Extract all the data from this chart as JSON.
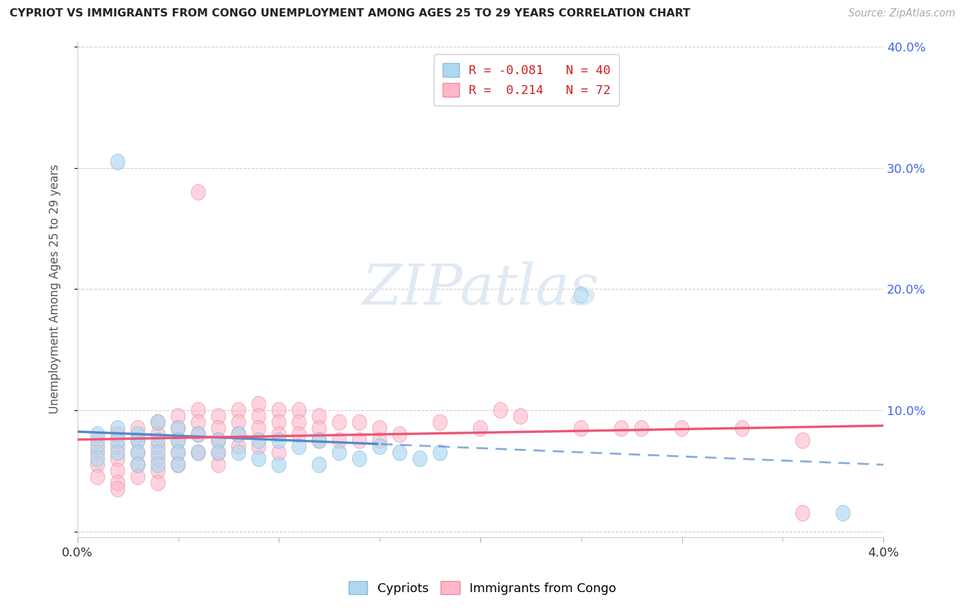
{
  "title": "CYPRIOT VS IMMIGRANTS FROM CONGO UNEMPLOYMENT AMONG AGES 25 TO 29 YEARS CORRELATION CHART",
  "source_text": "Source: ZipAtlas.com",
  "ylabel": "Unemployment Among Ages 25 to 29 years",
  "xlim": [
    0.0,
    0.04
  ],
  "ylim": [
    -0.005,
    0.405
  ],
  "R_cypriot": -0.081,
  "N_cypriot": 40,
  "R_congo": 0.214,
  "N_congo": 72,
  "cypriot_face_color": "#ADD8F0",
  "cypriot_edge_color": "#88BBDD",
  "congo_face_color": "#FFB8C8",
  "congo_edge_color": "#EE8899",
  "cypriot_line_color": "#5588CC",
  "congo_line_color": "#EE5577",
  "watermark_color": "#D8E8F0",
  "background_color": "#ffffff",
  "grid_color": "#cccccc",
  "right_tick_color": "#4466EE",
  "title_color": "#222222",
  "source_color": "#aaaaaa",
  "cypriot_x": [
    0.002,
    0.001,
    0.001,
    0.001,
    0.002,
    0.002,
    0.002,
    0.003,
    0.003,
    0.003,
    0.003,
    0.004,
    0.004,
    0.004,
    0.004,
    0.005,
    0.005,
    0.005,
    0.005,
    0.006,
    0.006,
    0.007,
    0.007,
    0.008,
    0.008,
    0.009,
    0.009,
    0.01,
    0.01,
    0.011,
    0.012,
    0.012,
    0.013,
    0.014,
    0.015,
    0.016,
    0.017,
    0.018,
    0.038,
    0.025
  ],
  "cypriot_y": [
    0.305,
    0.08,
    0.07,
    0.06,
    0.085,
    0.075,
    0.065,
    0.08,
    0.075,
    0.065,
    0.055,
    0.09,
    0.075,
    0.065,
    0.055,
    0.085,
    0.075,
    0.065,
    0.055,
    0.08,
    0.065,
    0.075,
    0.065,
    0.08,
    0.065,
    0.075,
    0.06,
    0.075,
    0.055,
    0.07,
    0.075,
    0.055,
    0.065,
    0.06,
    0.07,
    0.065,
    0.06,
    0.065,
    0.015,
    0.195
  ],
  "congo_x": [
    0.001,
    0.001,
    0.001,
    0.001,
    0.002,
    0.002,
    0.002,
    0.002,
    0.002,
    0.002,
    0.003,
    0.003,
    0.003,
    0.003,
    0.003,
    0.004,
    0.004,
    0.004,
    0.004,
    0.004,
    0.004,
    0.005,
    0.005,
    0.005,
    0.005,
    0.005,
    0.006,
    0.006,
    0.006,
    0.006,
    0.006,
    0.007,
    0.007,
    0.007,
    0.007,
    0.007,
    0.008,
    0.008,
    0.008,
    0.008,
    0.009,
    0.009,
    0.009,
    0.009,
    0.01,
    0.01,
    0.01,
    0.01,
    0.011,
    0.011,
    0.011,
    0.012,
    0.012,
    0.012,
    0.013,
    0.013,
    0.014,
    0.014,
    0.015,
    0.015,
    0.016,
    0.018,
    0.02,
    0.021,
    0.022,
    0.025,
    0.027,
    0.028,
    0.03,
    0.033,
    0.036,
    0.036
  ],
  "congo_y": [
    0.075,
    0.065,
    0.055,
    0.045,
    0.08,
    0.07,
    0.06,
    0.05,
    0.04,
    0.035,
    0.085,
    0.075,
    0.065,
    0.055,
    0.045,
    0.09,
    0.08,
    0.07,
    0.06,
    0.05,
    0.04,
    0.095,
    0.085,
    0.075,
    0.065,
    0.055,
    0.28,
    0.1,
    0.09,
    0.08,
    0.065,
    0.095,
    0.085,
    0.075,
    0.065,
    0.055,
    0.1,
    0.09,
    0.08,
    0.07,
    0.105,
    0.095,
    0.085,
    0.07,
    0.1,
    0.09,
    0.08,
    0.065,
    0.1,
    0.09,
    0.08,
    0.095,
    0.085,
    0.075,
    0.09,
    0.075,
    0.09,
    0.075,
    0.085,
    0.075,
    0.08,
    0.09,
    0.085,
    0.1,
    0.095,
    0.085,
    0.085,
    0.085,
    0.085,
    0.085,
    0.075,
    0.015
  ]
}
